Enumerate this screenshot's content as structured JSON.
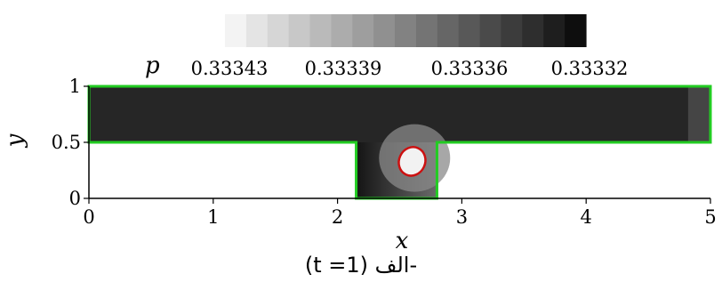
{
  "chart_data": {
    "type": "heatmap",
    "title": "",
    "colorbar": {
      "label": "p",
      "tick_labels": [
        "0.33343",
        "0.33339",
        "0.33336",
        "0.33332"
      ],
      "colors": [
        "#f3f3f3",
        "#e4e4e4",
        "#d6d6d6",
        "#c8c8c8",
        "#bababa",
        "#acacac",
        "#9e9e9e",
        "#909090",
        "#828282",
        "#747474",
        "#666666",
        "#585858",
        "#4a4a4a",
        "#3c3c3c",
        "#2e2e2e",
        "#1e1e1e",
        "#0e0e0e"
      ]
    },
    "xlabel": "x",
    "ylabel": "y",
    "xlim": [
      0,
      5
    ],
    "ylim": [
      0,
      1
    ],
    "x_ticks": [
      "0",
      "1",
      "2",
      "3",
      "4",
      "5"
    ],
    "y_ticks": [
      "0",
      "0.5",
      "1"
    ],
    "domain": {
      "channel": {
        "x": [
          0,
          5
        ],
        "y": [
          0.5,
          1
        ]
      },
      "cavity": {
        "x": [
          2.15,
          2.8
        ],
        "y": [
          0,
          0.5
        ]
      },
      "boundary_color": "#22cc22",
      "field_color": "#262626"
    },
    "bubble": {
      "center": [
        2.6,
        0.33
      ],
      "rx": 0.21,
      "ry": 0.26,
      "outline_color": "#cc1111",
      "fill_color": "#f2f2f2"
    }
  },
  "caption": {
    "text": "(t =1) الف-"
  }
}
